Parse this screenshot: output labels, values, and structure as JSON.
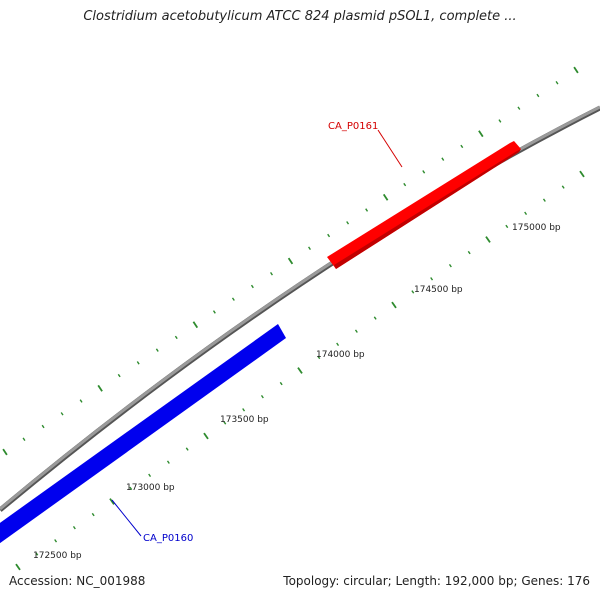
{
  "title": "Clostridium acetobutylicum ATCC 824 plasmid pSOL1, complete ...",
  "footer": {
    "accession": "Accession: NC_001988",
    "summary": "Topology: circular; Length: 192,000 bp; Genes: 176"
  },
  "colors": {
    "backbone": "#8a8a8a",
    "tick": "#2e8b2e",
    "gene_forward": "#ff0000",
    "gene_reverse": "#0000ee",
    "label_forward": "#d40000",
    "label_reverse": "#0000cc"
  },
  "genes": [
    {
      "id": "CA_P0160",
      "strand": "reverse"
    },
    {
      "id": "CA_P0161",
      "strand": "forward"
    }
  ],
  "scale_labels": [
    "172500 bp",
    "173000 bp",
    "173500 bp",
    "174000 bp",
    "174500 bp",
    "175000 bp"
  ]
}
